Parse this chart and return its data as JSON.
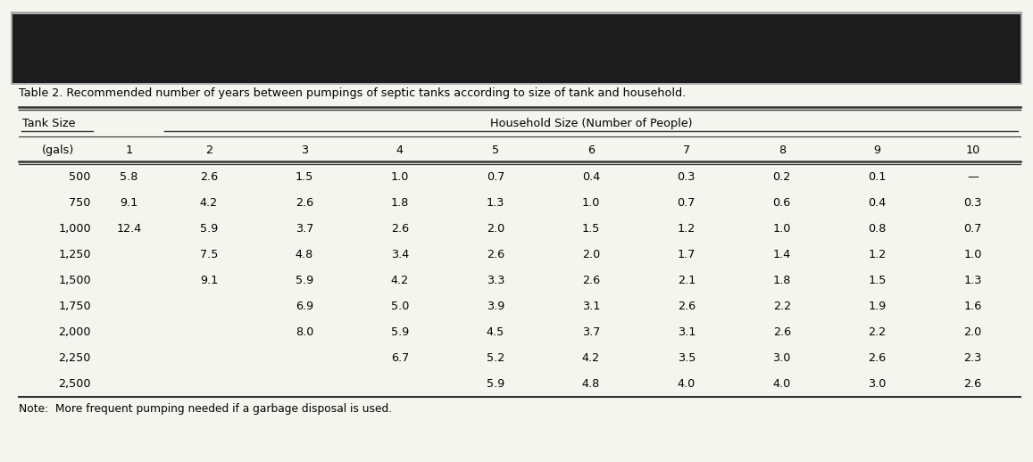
{
  "title": "Table 2. Recommended number of years between pumpings of septic tanks according to size of tank and household.",
  "note": "Note:  More frequent pumping needed if a garbage disposal is used.",
  "header_row1_col1": "Tank Size",
  "header_row1_span": "Household Size (Number of People)",
  "header_row2_col1": "(gals)",
  "header_row2_cols": [
    "1",
    "2",
    "3",
    "4",
    "5",
    "6",
    "7",
    "8",
    "9",
    "10"
  ],
  "tank_sizes": [
    "500",
    "750",
    "1,000",
    "1,250",
    "1,500",
    "1,750",
    "2,000",
    "2,250",
    "2,500"
  ],
  "table_data": [
    [
      "5.8",
      "2.6",
      "1.5",
      "1.0",
      "0.7",
      "0.4",
      "0.3",
      "0.2",
      "0.1",
      "—"
    ],
    [
      "9.1",
      "4.2",
      "2.6",
      "1.8",
      "1.3",
      "1.0",
      "0.7",
      "0.6",
      "0.4",
      "0.3"
    ],
    [
      "12.4",
      "5.9",
      "3.7",
      "2.6",
      "2.0",
      "1.5",
      "1.2",
      "1.0",
      "0.8",
      "0.7"
    ],
    [
      "",
      "7.5",
      "4.8",
      "3.4",
      "2.6",
      "2.0",
      "1.7",
      "1.4",
      "1.2",
      "1.0"
    ],
    [
      "",
      "9.1",
      "5.9",
      "4.2",
      "3.3",
      "2.6",
      "2.1",
      "1.8",
      "1.5",
      "1.3"
    ],
    [
      "",
      "",
      "6.9",
      "5.0",
      "3.9",
      "3.1",
      "2.6",
      "2.2",
      "1.9",
      "1.6"
    ],
    [
      "",
      "",
      "8.0",
      "5.9",
      "4.5",
      "3.7",
      "3.1",
      "2.6",
      "2.2",
      "2.0"
    ],
    [
      "",
      "",
      "",
      "6.7",
      "5.2",
      "4.2",
      "3.5",
      "3.0",
      "2.6",
      "2.3"
    ],
    [
      "",
      "",
      "",
      "",
      "5.9",
      "4.8",
      "4.0",
      "4.0",
      "3.0",
      "2.6"
    ]
  ],
  "black_bar_color": "#1c1c1c",
  "black_bar_border_color": "#888888",
  "background_color": "#f5f5f0",
  "line_color": "#333333",
  "text_color": "#000000",
  "figsize": [
    11.57,
    5.18
  ],
  "dpi": 100
}
